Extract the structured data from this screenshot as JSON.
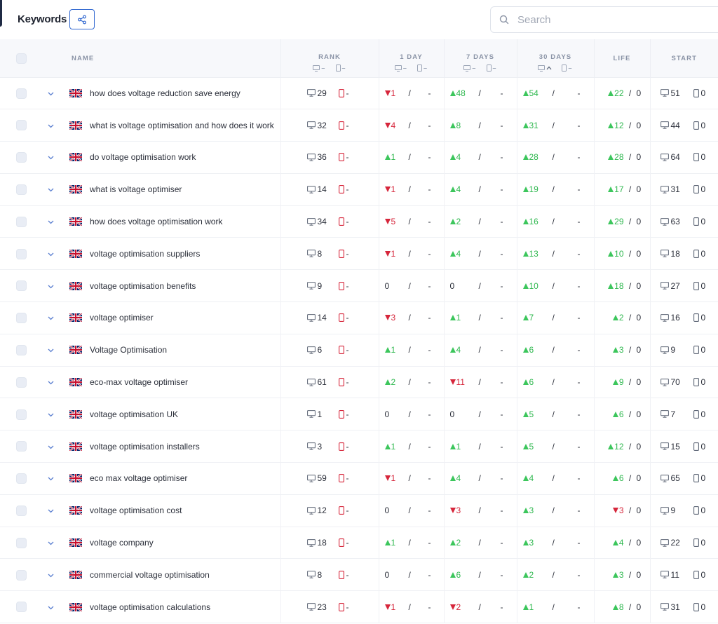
{
  "header": {
    "title": "Keywords"
  },
  "search": {
    "placeholder": "Search",
    "value": ""
  },
  "columns": {
    "name": "NAME",
    "rank": "RANK",
    "day1": "1 DAY",
    "days7": "7 DAYS",
    "days30": "30 DAYS",
    "life": "LIFE",
    "start": "START",
    "sub_dash": "–"
  },
  "colors": {
    "up": "#3cc65c",
    "down": "#d6263b",
    "accent": "#2f66d0"
  },
  "rows": [
    {
      "kw": "how does voltage reduction save energy",
      "rank": "29",
      "rank_m": "-",
      "d1": {
        "dir": "down",
        "v": "1"
      },
      "d1m": "-",
      "d7": {
        "dir": "up",
        "v": "48"
      },
      "d7m": "-",
      "d30": {
        "dir": "up",
        "v": "54"
      },
      "d30m": "-",
      "life": {
        "dir": "up",
        "v": "22"
      },
      "lifem": "0",
      "start": "51",
      "startm": "0"
    },
    {
      "kw": "what is voltage optimisation and how does it work",
      "rank": "32",
      "rank_m": "-",
      "d1": {
        "dir": "down",
        "v": "4"
      },
      "d1m": "-",
      "d7": {
        "dir": "up",
        "v": "8"
      },
      "d7m": "-",
      "d30": {
        "dir": "up",
        "v": "31"
      },
      "d30m": "-",
      "life": {
        "dir": "up",
        "v": "12"
      },
      "lifem": "0",
      "start": "44",
      "startm": "0"
    },
    {
      "kw": "do voltage optimisation work",
      "rank": "36",
      "rank_m": "-",
      "d1": {
        "dir": "up",
        "v": "1"
      },
      "d1m": "-",
      "d7": {
        "dir": "up",
        "v": "4"
      },
      "d7m": "-",
      "d30": {
        "dir": "up",
        "v": "28"
      },
      "d30m": "-",
      "life": {
        "dir": "up",
        "v": "28"
      },
      "lifem": "0",
      "start": "64",
      "startm": "0"
    },
    {
      "kw": "what is voltage optimiser",
      "rank": "14",
      "rank_m": "-",
      "d1": {
        "dir": "down",
        "v": "1"
      },
      "d1m": "-",
      "d7": {
        "dir": "up",
        "v": "4"
      },
      "d7m": "-",
      "d30": {
        "dir": "up",
        "v": "19"
      },
      "d30m": "-",
      "life": {
        "dir": "up",
        "v": "17"
      },
      "lifem": "0",
      "start": "31",
      "startm": "0"
    },
    {
      "kw": "how does voltage optimisation work",
      "rank": "34",
      "rank_m": "-",
      "d1": {
        "dir": "down",
        "v": "5"
      },
      "d1m": "-",
      "d7": {
        "dir": "up",
        "v": "2"
      },
      "d7m": "-",
      "d30": {
        "dir": "up",
        "v": "16"
      },
      "d30m": "-",
      "life": {
        "dir": "up",
        "v": "29"
      },
      "lifem": "0",
      "start": "63",
      "startm": "0"
    },
    {
      "kw": "voltage optimisation suppliers",
      "rank": "8",
      "rank_m": "-",
      "d1": {
        "dir": "down",
        "v": "1"
      },
      "d1m": "-",
      "d7": {
        "dir": "up",
        "v": "4"
      },
      "d7m": "-",
      "d30": {
        "dir": "up",
        "v": "13"
      },
      "d30m": "-",
      "life": {
        "dir": "up",
        "v": "10"
      },
      "lifem": "0",
      "start": "18",
      "startm": "0"
    },
    {
      "kw": "voltage optimisation benefits",
      "rank": "9",
      "rank_m": "-",
      "d1": {
        "dir": "none",
        "v": "0"
      },
      "d1m": "-",
      "d7": {
        "dir": "none",
        "v": "0"
      },
      "d7m": "-",
      "d30": {
        "dir": "up",
        "v": "10"
      },
      "d30m": "-",
      "life": {
        "dir": "up",
        "v": "18"
      },
      "lifem": "0",
      "start": "27",
      "startm": "0"
    },
    {
      "kw": "voltage optimiser",
      "rank": "14",
      "rank_m": "-",
      "d1": {
        "dir": "down",
        "v": "3"
      },
      "d1m": "-",
      "d7": {
        "dir": "up",
        "v": "1"
      },
      "d7m": "-",
      "d30": {
        "dir": "up",
        "v": "7"
      },
      "d30m": "-",
      "life": {
        "dir": "up",
        "v": "2"
      },
      "lifem": "0",
      "start": "16",
      "startm": "0"
    },
    {
      "kw": "Voltage Optimisation",
      "rank": "6",
      "rank_m": "-",
      "d1": {
        "dir": "up",
        "v": "1"
      },
      "d1m": "-",
      "d7": {
        "dir": "up",
        "v": "4"
      },
      "d7m": "-",
      "d30": {
        "dir": "up",
        "v": "6"
      },
      "d30m": "-",
      "life": {
        "dir": "up",
        "v": "3"
      },
      "lifem": "0",
      "start": "9",
      "startm": "0"
    },
    {
      "kw": "eco-max voltage optimiser",
      "rank": "61",
      "rank_m": "-",
      "d1": {
        "dir": "up",
        "v": "2"
      },
      "d1m": "-",
      "d7": {
        "dir": "down",
        "v": "11"
      },
      "d7m": "-",
      "d30": {
        "dir": "up",
        "v": "6"
      },
      "d30m": "-",
      "life": {
        "dir": "up",
        "v": "9"
      },
      "lifem": "0",
      "start": "70",
      "startm": "0"
    },
    {
      "kw": "voltage optimisation UK",
      "rank": "1",
      "rank_m": "-",
      "d1": {
        "dir": "none",
        "v": "0"
      },
      "d1m": "-",
      "d7": {
        "dir": "none",
        "v": "0"
      },
      "d7m": "-",
      "d30": {
        "dir": "up",
        "v": "5"
      },
      "d30m": "-",
      "life": {
        "dir": "up",
        "v": "6"
      },
      "lifem": "0",
      "start": "7",
      "startm": "0"
    },
    {
      "kw": "voltage optimisation installers",
      "rank": "3",
      "rank_m": "-",
      "d1": {
        "dir": "up",
        "v": "1"
      },
      "d1m": "-",
      "d7": {
        "dir": "up",
        "v": "1"
      },
      "d7m": "-",
      "d30": {
        "dir": "up",
        "v": "5"
      },
      "d30m": "-",
      "life": {
        "dir": "up",
        "v": "12"
      },
      "lifem": "0",
      "start": "15",
      "startm": "0"
    },
    {
      "kw": "eco max voltage optimiser",
      "rank": "59",
      "rank_m": "-",
      "d1": {
        "dir": "down",
        "v": "1"
      },
      "d1m": "-",
      "d7": {
        "dir": "up",
        "v": "4"
      },
      "d7m": "-",
      "d30": {
        "dir": "up",
        "v": "4"
      },
      "d30m": "-",
      "life": {
        "dir": "up",
        "v": "6"
      },
      "lifem": "0",
      "start": "65",
      "startm": "0"
    },
    {
      "kw": "voltage optimisation cost",
      "rank": "12",
      "rank_m": "-",
      "d1": {
        "dir": "none",
        "v": "0"
      },
      "d1m": "-",
      "d7": {
        "dir": "down",
        "v": "3"
      },
      "d7m": "-",
      "d30": {
        "dir": "up",
        "v": "3"
      },
      "d30m": "-",
      "life": {
        "dir": "down",
        "v": "3"
      },
      "lifem": "0",
      "start": "9",
      "startm": "0"
    },
    {
      "kw": "voltage company",
      "rank": "18",
      "rank_m": "-",
      "d1": {
        "dir": "up",
        "v": "1"
      },
      "d1m": "-",
      "d7": {
        "dir": "up",
        "v": "2"
      },
      "d7m": "-",
      "d30": {
        "dir": "up",
        "v": "3"
      },
      "d30m": "-",
      "life": {
        "dir": "up",
        "v": "4"
      },
      "lifem": "0",
      "start": "22",
      "startm": "0"
    },
    {
      "kw": "commercial voltage optimisation",
      "rank": "8",
      "rank_m": "-",
      "d1": {
        "dir": "none",
        "v": "0"
      },
      "d1m": "-",
      "d7": {
        "dir": "up",
        "v": "6"
      },
      "d7m": "-",
      "d30": {
        "dir": "up",
        "v": "2"
      },
      "d30m": "-",
      "life": {
        "dir": "up",
        "v": "3"
      },
      "lifem": "0",
      "start": "11",
      "startm": "0"
    },
    {
      "kw": "voltage optimisation calculations",
      "rank": "23",
      "rank_m": "-",
      "d1": {
        "dir": "down",
        "v": "1"
      },
      "d1m": "-",
      "d7": {
        "dir": "down",
        "v": "2"
      },
      "d7m": "-",
      "d30": {
        "dir": "up",
        "v": "1"
      },
      "d30m": "-",
      "life": {
        "dir": "up",
        "v": "8"
      },
      "lifem": "0",
      "start": "31",
      "startm": "0"
    }
  ],
  "icons": {
    "share": "share-icon",
    "search": "search-icon",
    "desktop": "desktop-icon",
    "mobile": "mobile-icon",
    "expand": "chevron-down-icon",
    "flag": "uk-flag-icon",
    "sort": "sort-up-icon"
  }
}
